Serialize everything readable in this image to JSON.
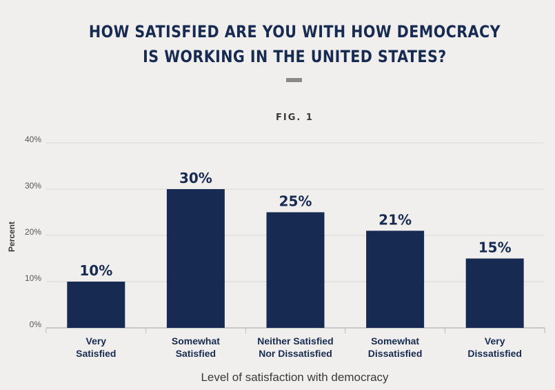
{
  "title_line1": "HOW SATISFIED ARE YOU WITH HOW DEMOCRACY",
  "title_line2": "IS WORKING IN THE UNITED STATES?",
  "figure_label": "FIG. 1",
  "colors": {
    "bar": "#172b52",
    "grid": "#dcdad8",
    "background": "#f1efee",
    "accent_rule": "#8a8a8a"
  },
  "chart_data": {
    "type": "bar",
    "title": "HOW SATISFIED ARE YOU WITH HOW DEMOCRACY IS WORKING IN THE UNITED STATES?",
    "xlabel": "Level of satisfaction with democracy",
    "ylabel": "Percent",
    "categories": [
      [
        "Very",
        "Satisfied"
      ],
      [
        "Somewhat",
        "Satisfied"
      ],
      [
        "Neither Satisfied",
        "Nor Dissatisfied"
      ],
      [
        "Somewhat",
        "Dissatisfied"
      ],
      [
        "Very",
        "Dissatisfied"
      ]
    ],
    "values": [
      10,
      30,
      25,
      21,
      15
    ],
    "data_labels": [
      "10%",
      "30%",
      "25%",
      "21%",
      "15%"
    ],
    "ylim": [
      0,
      40
    ],
    "yticks": [
      0,
      10,
      20,
      30,
      40
    ],
    "ytick_labels": [
      "0%",
      "10%",
      "20%",
      "30%",
      "40%"
    ],
    "grid": true,
    "legend": "none"
  }
}
